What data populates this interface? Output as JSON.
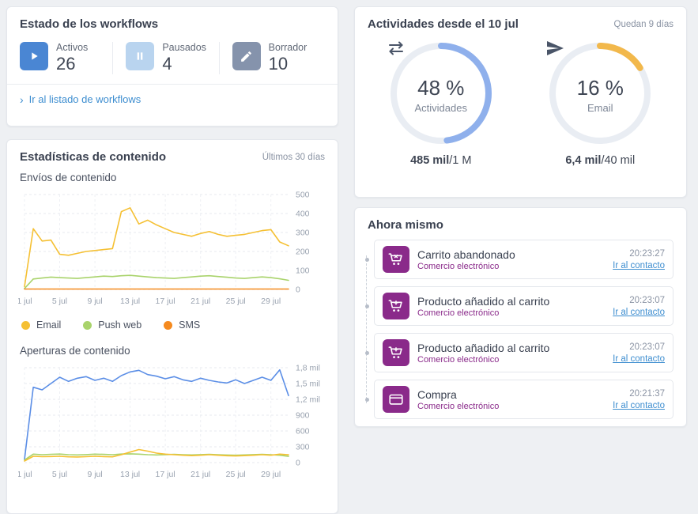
{
  "accent": {
    "link_blue": "#3e8ed0",
    "purple": "#8a2a8a",
    "heading": "#3a4150"
  },
  "workflows": {
    "title": "Estado de los workflows",
    "stats": [
      {
        "label": "Activos",
        "value": "26",
        "icon": "play-icon",
        "color": "#4a86d3"
      },
      {
        "label": "Pausados",
        "value": "4",
        "icon": "pause-icon",
        "color": "#b9d4ef"
      },
      {
        "label": "Borrador",
        "value": "10",
        "icon": "pencil-icon",
        "color": "#8593ac"
      }
    ],
    "link": "Ir al listado de workflows"
  },
  "content_stats": {
    "title": "Estadísticas de contenido",
    "period": "Últimos 30 días",
    "chart1_title": "Envíos de contenido",
    "chart2_title": "Aperturas de contenido"
  },
  "activities": {
    "title": "Actividades desde el 10 jul",
    "remaining": "Quedan 9 días",
    "gauges": [
      {
        "percent": 48,
        "percent_label": "48 %",
        "label": "Actividades",
        "used": "485 mil",
        "total": "/1 M",
        "color": "#8fb0ec",
        "icon": "swap-icon",
        "track_color": "#e9edf3"
      },
      {
        "percent": 16,
        "percent_label": "16 %",
        "label": "Email",
        "used": "6,4 mil",
        "total": "/40 mil",
        "color": "#f2b84b",
        "icon": "send-icon",
        "track_color": "#e9edf3"
      }
    ]
  },
  "now": {
    "title": "Ahora mismo",
    "icon_color": "#8a2a8a",
    "events": [
      {
        "title": "Carrito abandonado",
        "category": "Comercio electrónico",
        "time": "20:23:27",
        "link": "Ir al contacto",
        "icon": "cart-x-icon"
      },
      {
        "title": "Producto añadido al carrito",
        "category": "Comercio electrónico",
        "time": "20:23:07",
        "link": "Ir al contacto",
        "icon": "cart-plus-icon"
      },
      {
        "title": "Producto añadido al carrito",
        "category": "Comercio electrónico",
        "time": "20:23:07",
        "link": "Ir al contacto",
        "icon": "cart-plus-icon"
      },
      {
        "title": "Compra",
        "category": "Comercio electrónico",
        "time": "20:21:37",
        "link": "Ir al contacto",
        "icon": "card-icon"
      }
    ]
  },
  "chart_data": [
    {
      "type": "line",
      "title": "Envíos de contenido",
      "x_tick_labels": [
        "1 jul",
        "5 jul",
        "9 jul",
        "13 jul",
        "17 jul",
        "21 jul",
        "25 jul",
        "29 jul"
      ],
      "x_tick_every": 4,
      "ylim": [
        0,
        500
      ],
      "y_ticks": [
        0,
        100,
        200,
        300,
        400,
        500
      ],
      "y_tick_labels": [
        "0",
        "100",
        "200",
        "300",
        "400",
        "500"
      ],
      "grid": true,
      "legend_position": "bottom",
      "series": [
        {
          "name": "Email",
          "color": "#f5c033",
          "values": [
            15,
            320,
            255,
            260,
            185,
            180,
            190,
            200,
            205,
            210,
            215,
            410,
            430,
            345,
            365,
            340,
            320,
            300,
            290,
            280,
            295,
            305,
            290,
            280,
            285,
            290,
            300,
            310,
            315,
            250,
            230
          ]
        },
        {
          "name": "Push web",
          "color": "#a9d36c",
          "values": [
            5,
            55,
            60,
            65,
            62,
            60,
            58,
            62,
            66,
            70,
            68,
            72,
            74,
            70,
            66,
            62,
            60,
            58,
            62,
            66,
            70,
            72,
            68,
            64,
            60,
            58,
            62,
            66,
            62,
            56,
            48
          ]
        },
        {
          "name": "SMS",
          "color": "#f58a1f",
          "values": [
            2,
            2,
            2,
            2,
            2,
            2,
            2,
            2,
            2,
            2,
            2,
            2,
            2,
            2,
            2,
            2,
            2,
            2,
            2,
            2,
            2,
            2,
            2,
            2,
            2,
            2,
            2,
            2,
            2,
            2,
            2
          ]
        }
      ]
    },
    {
      "type": "line",
      "title": "Aperturas de contenido",
      "x_tick_labels": [
        "1 jul",
        "5 jul",
        "9 jul",
        "13 jul",
        "17 jul",
        "21 jul",
        "25 jul",
        "29 jul"
      ],
      "x_tick_every": 4,
      "ylim": [
        0,
        1800
      ],
      "y_ticks": [
        0,
        300,
        600,
        900,
        1200,
        1500,
        1800
      ],
      "y_tick_labels": [
        "0",
        "300",
        "600",
        "900",
        "1,2 mil",
        "1,5 mil",
        "1,8 mil"
      ],
      "grid": true,
      "legend_position": "none",
      "series": [
        {
          "name": "Email",
          "color": "#5b8ee6",
          "values": [
            60,
            1430,
            1380,
            1500,
            1620,
            1540,
            1600,
            1630,
            1560,
            1600,
            1540,
            1650,
            1720,
            1750,
            1670,
            1640,
            1590,
            1630,
            1570,
            1540,
            1600,
            1560,
            1530,
            1510,
            1570,
            1500,
            1560,
            1620,
            1560,
            1760,
            1270
          ]
        },
        {
          "name": "Push web",
          "color": "#a9d36c",
          "values": [
            50,
            160,
            150,
            158,
            162,
            150,
            146,
            152,
            160,
            156,
            150,
            162,
            166,
            160,
            150,
            146,
            152,
            156,
            150,
            146,
            152,
            156,
            150,
            144,
            140,
            146,
            152,
            156,
            150,
            140,
            118
          ]
        },
        {
          "name": "SMS",
          "color": "#f5c033",
          "values": [
            30,
            120,
            112,
            116,
            120,
            110,
            106,
            112,
            120,
            114,
            110,
            150,
            200,
            248,
            218,
            180,
            160,
            150,
            140,
            132,
            140,
            150,
            140,
            130,
            126,
            132,
            140,
            150,
            140,
            160,
            148
          ]
        }
      ]
    }
  ]
}
